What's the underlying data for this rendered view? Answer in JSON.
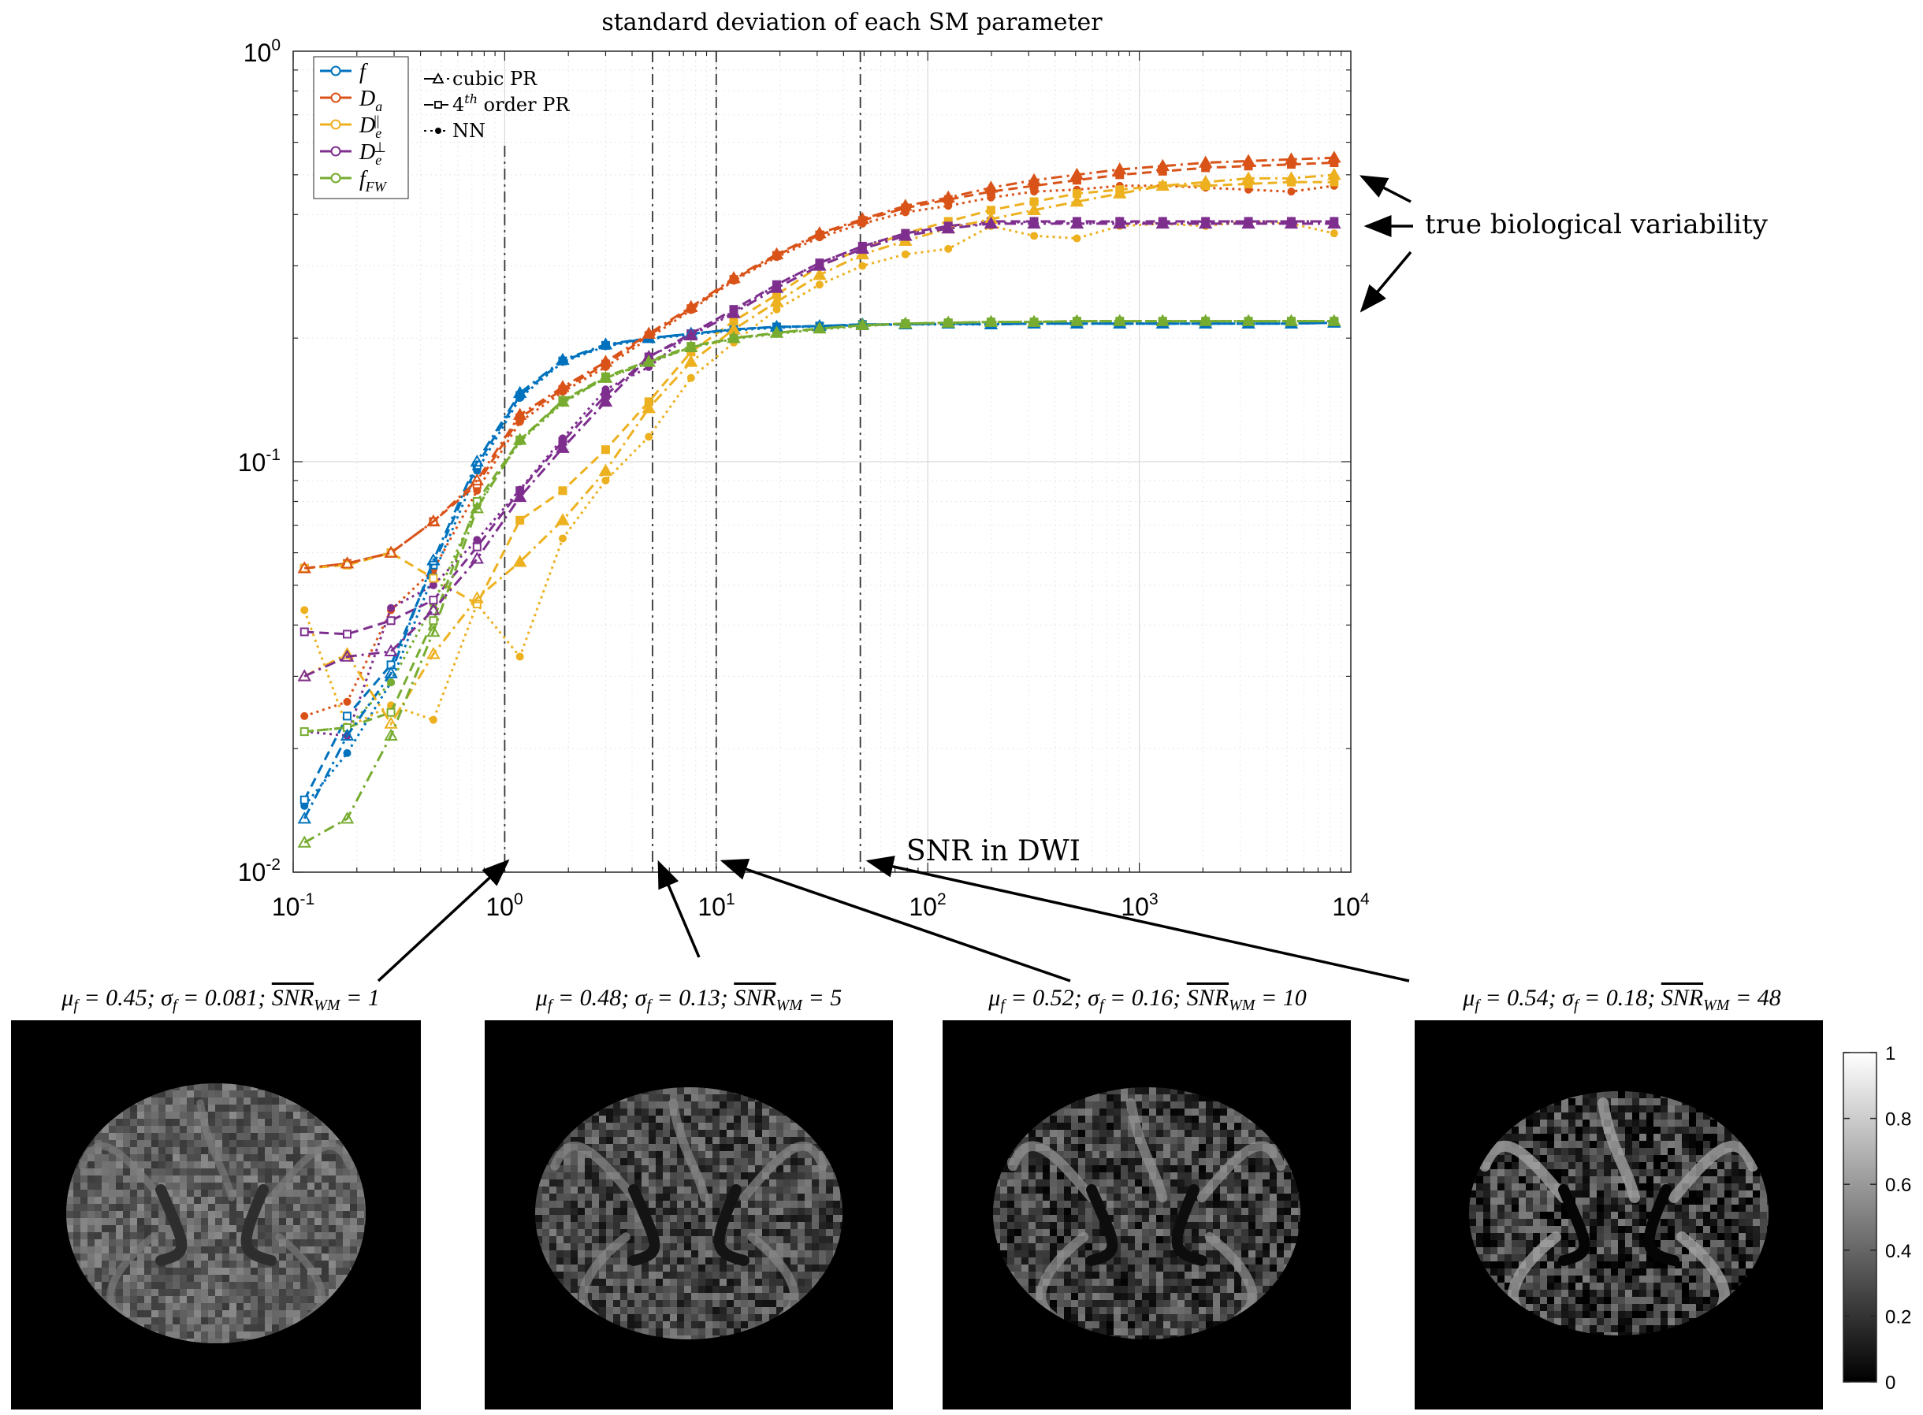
{
  "chart_data": {
    "type": "line",
    "title": "standard deviation of each SM parameter",
    "xscale": "log",
    "yscale": "log",
    "xlim": [
      0.1,
      10000
    ],
    "ylim": [
      0.01,
      1
    ],
    "x_tick_labels": [
      "10-1",
      "100",
      "101",
      "102",
      "103",
      "104"
    ],
    "y_tick_labels": [
      "10-2",
      "10-1",
      "100"
    ],
    "grid": true,
    "legend_position": "top-left",
    "legend_series": [
      {
        "key": "f",
        "label": "f",
        "color": "#0072BD"
      },
      {
        "key": "Da",
        "label": "Da",
        "color": "#D95319"
      },
      {
        "key": "Depar",
        "label": "De||",
        "color": "#EDB120"
      },
      {
        "key": "Deperp",
        "label": "De⊥",
        "color": "#7E2F8E"
      },
      {
        "key": "fFW",
        "label": "fFW",
        "color": "#77AC30"
      }
    ],
    "legend_methods": [
      {
        "key": "cubic",
        "label": "cubic PR",
        "marker": "triangle",
        "dash": "dash-dot"
      },
      {
        "key": "quartic",
        "label": "4th order PR",
        "marker": "square",
        "dash": "dashed"
      },
      {
        "key": "nn",
        "label": "NN",
        "marker": "dot",
        "dash": "dotted"
      }
    ],
    "x": [
      0.113,
      0.18,
      0.29,
      0.46,
      0.74,
      1.18,
      1.88,
      3.0,
      4.8,
      7.6,
      12.1,
      19.3,
      30.8,
      49.1,
      78.4,
      125,
      199,
      318,
      507,
      808,
      1290,
      2057,
      3280,
      5230,
      8339
    ],
    "vlines": [
      1,
      5,
      10,
      48
    ],
    "series": [
      {
        "name": "f",
        "method": "cubic",
        "values": [
          0.0135,
          0.0215,
          0.0305,
          0.0575,
          0.1,
          0.147,
          0.177,
          0.193,
          0.2,
          0.205,
          0.21,
          0.213,
          0.214,
          0.216,
          0.216,
          0.217,
          0.216,
          0.217,
          0.217,
          0.217,
          0.217,
          0.217,
          0.217,
          0.217,
          0.218
        ]
      },
      {
        "name": "f",
        "method": "quartic",
        "values": [
          0.015,
          0.024,
          0.032,
          0.056,
          0.098,
          0.145,
          0.176,
          0.192,
          0.2,
          0.205,
          0.21,
          0.213,
          0.214,
          0.216,
          0.216,
          0.217,
          0.216,
          0.217,
          0.217,
          0.217,
          0.217,
          0.217,
          0.217,
          0.217,
          0.218
        ]
      },
      {
        "name": "f",
        "method": "nn",
        "values": [
          0.0145,
          0.0195,
          0.029,
          0.053,
          0.095,
          0.143,
          0.175,
          0.191,
          0.199,
          0.204,
          0.209,
          0.212,
          0.214,
          0.215,
          0.216,
          0.216,
          0.216,
          0.217,
          0.217,
          0.217,
          0.217,
          0.217,
          0.217,
          0.217,
          0.218
        ]
      },
      {
        "name": "Da",
        "method": "cubic",
        "values": [
          0.055,
          0.0565,
          0.06,
          0.0715,
          0.09,
          0.13,
          0.152,
          0.175,
          0.205,
          0.238,
          0.28,
          0.32,
          0.36,
          0.39,
          0.42,
          0.44,
          0.465,
          0.485,
          0.5,
          0.515,
          0.525,
          0.535,
          0.54,
          0.545,
          0.55
        ]
      },
      {
        "name": "Da",
        "method": "quartic",
        "values": [
          0.055,
          0.0565,
          0.06,
          0.0715,
          0.088,
          0.128,
          0.15,
          0.173,
          0.203,
          0.236,
          0.278,
          0.318,
          0.357,
          0.387,
          0.415,
          0.435,
          0.455,
          0.47,
          0.485,
          0.5,
          0.51,
          0.52,
          0.525,
          0.53,
          0.535
        ]
      },
      {
        "name": "Da",
        "method": "nn",
        "values": [
          0.024,
          0.026,
          0.0435,
          0.0545,
          0.085,
          0.125,
          0.148,
          0.17,
          0.2,
          0.234,
          0.276,
          0.315,
          0.352,
          0.38,
          0.405,
          0.42,
          0.44,
          0.455,
          0.46,
          0.47,
          0.47,
          0.465,
          0.46,
          0.455,
          0.47
        ]
      },
      {
        "name": "De||",
        "method": "cubic",
        "values": [
          0.03,
          0.034,
          0.023,
          0.034,
          0.0465,
          0.057,
          0.072,
          0.095,
          0.135,
          0.175,
          0.21,
          0.245,
          0.285,
          0.32,
          0.345,
          0.37,
          0.39,
          0.41,
          0.43,
          0.45,
          0.47,
          0.48,
          0.49,
          0.49,
          0.5
        ]
      },
      {
        "name": "De||",
        "method": "quartic",
        "values": [
          0.055,
          0.056,
          0.06,
          0.052,
          0.045,
          0.072,
          0.085,
          0.107,
          0.14,
          0.185,
          0.22,
          0.255,
          0.3,
          0.33,
          0.36,
          0.385,
          0.41,
          0.43,
          0.45,
          0.46,
          0.47,
          0.47,
          0.475,
          0.48,
          0.48
        ]
      },
      {
        "name": "De||",
        "method": "nn",
        "values": [
          0.0435,
          0.0225,
          0.0255,
          0.0235,
          0.045,
          0.0335,
          0.065,
          0.09,
          0.115,
          0.16,
          0.195,
          0.235,
          0.27,
          0.3,
          0.32,
          0.33,
          0.375,
          0.355,
          0.35,
          0.375,
          0.38,
          0.375,
          0.385,
          0.38,
          0.36
        ]
      },
      {
        "name": "De⊥",
        "method": "cubic",
        "values": [
          0.03,
          0.0335,
          0.0345,
          0.0435,
          0.058,
          0.082,
          0.108,
          0.14,
          0.18,
          0.203,
          0.23,
          0.265,
          0.3,
          0.33,
          0.355,
          0.37,
          0.38,
          0.38,
          0.38,
          0.38,
          0.38,
          0.38,
          0.38,
          0.38,
          0.38
        ]
      },
      {
        "name": "De⊥",
        "method": "quartic",
        "values": [
          0.0385,
          0.038,
          0.041,
          0.046,
          0.062,
          0.085,
          0.112,
          0.145,
          0.18,
          0.205,
          0.235,
          0.27,
          0.305,
          0.335,
          0.36,
          0.375,
          0.385,
          0.385,
          0.385,
          0.385,
          0.385,
          0.385,
          0.385,
          0.385,
          0.385
        ]
      },
      {
        "name": "De⊥",
        "method": "nn",
        "values": [
          0.022,
          0.0215,
          0.044,
          0.05,
          0.0645,
          0.0855,
          0.114,
          0.15,
          0.17,
          0.205,
          0.232,
          0.27,
          0.305,
          0.335,
          0.36,
          0.375,
          0.38,
          0.385,
          0.38,
          0.385,
          0.38,
          0.385,
          0.385,
          0.385,
          0.385
        ]
      },
      {
        "name": "fFW",
        "method": "cubic",
        "values": [
          0.0118,
          0.0135,
          0.0215,
          0.0385,
          0.077,
          0.113,
          0.14,
          0.16,
          0.175,
          0.19,
          0.2,
          0.206,
          0.211,
          0.215,
          0.217,
          0.218,
          0.219,
          0.219,
          0.22,
          0.22,
          0.22,
          0.22,
          0.22,
          0.22,
          0.22
        ]
      },
      {
        "name": "fFW",
        "method": "quartic",
        "values": [
          0.022,
          0.0225,
          0.0245,
          0.041,
          0.08,
          0.113,
          0.141,
          0.161,
          0.176,
          0.191,
          0.2,
          0.206,
          0.211,
          0.215,
          0.217,
          0.218,
          0.219,
          0.219,
          0.22,
          0.22,
          0.22,
          0.22,
          0.22,
          0.22,
          0.22
        ]
      },
      {
        "name": "fFW",
        "method": "nn",
        "values": [
          0.022,
          0.0225,
          0.029,
          0.045,
          0.078,
          0.112,
          0.139,
          0.16,
          0.174,
          0.19,
          0.199,
          0.205,
          0.21,
          0.214,
          0.217,
          0.218,
          0.219,
          0.219,
          0.22,
          0.22,
          0.22,
          0.22,
          0.22,
          0.22,
          0.22
        ]
      }
    ],
    "annotations": [
      {
        "text": "true biological variability"
      },
      {
        "text": "SNR in DWI"
      }
    ]
  },
  "brain_panels": [
    {
      "mu": "0.45",
      "sigma": "0.081",
      "snr": "1"
    },
    {
      "mu": "0.48",
      "sigma": "0.13",
      "snr": "5"
    },
    {
      "mu": "0.52",
      "sigma": "0.16",
      "snr": "10"
    },
    {
      "mu": "0.54",
      "sigma": "0.18",
      "snr": "48"
    }
  ],
  "colorbar": {
    "min": 0,
    "max": 1,
    "tick_labels": [
      "0",
      "0.2",
      "0.4",
      "0.6",
      "0.8",
      "1"
    ]
  }
}
